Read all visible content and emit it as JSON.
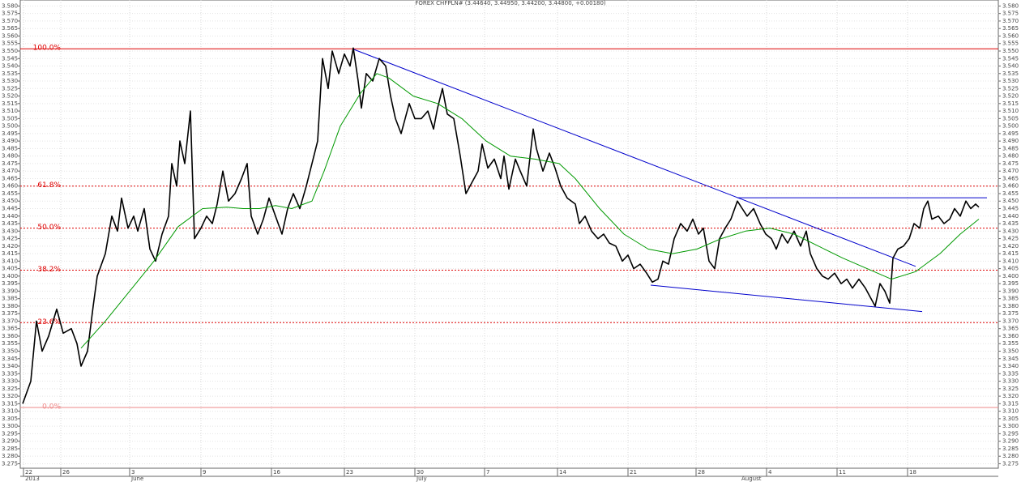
{
  "chart_data": {
    "type": "line",
    "title": "FOREX CHFPLN# (3.44640, 3.44950, 3.44200, 3.44800, +0.00180)",
    "xlim": [
      0,
      120.7
    ],
    "ylim": [
      3.272,
      3.584
    ],
    "grid": true,
    "xticks": [
      {
        "value": 0.4,
        "label": "22"
      },
      {
        "value": 5,
        "label": "26"
      },
      {
        "value": 13.5,
        "label": "3"
      },
      {
        "value": 22.3,
        "label": "9"
      },
      {
        "value": 31,
        "label": "16"
      },
      {
        "value": 40,
        "label": "23"
      },
      {
        "value": 48.7,
        "label": "30"
      },
      {
        "value": 57.3,
        "label": "7"
      },
      {
        "value": 66.3,
        "label": "14"
      },
      {
        "value": 75,
        "label": "21"
      },
      {
        "value": 83.4,
        "label": "28"
      },
      {
        "value": 92.1,
        "label": "4"
      },
      {
        "value": 100.8,
        "label": "11"
      },
      {
        "value": 109.5,
        "label": "18"
      }
    ],
    "month_labels": [
      {
        "value": 0.4,
        "label": "2013"
      },
      {
        "value": 13.5,
        "label": "June"
      },
      {
        "value": 48.7,
        "label": "July"
      },
      {
        "value": 88.8,
        "label": "August"
      }
    ],
    "yticks": [
      {
        "value": 3.58,
        "label": "3.580"
      },
      {
        "value": 3.575,
        "label": "3.575"
      },
      {
        "value": 3.57,
        "label": "3.570"
      },
      {
        "value": 3.565,
        "label": "3.565"
      },
      {
        "value": 3.56,
        "label": "3.560"
      },
      {
        "value": 3.555,
        "label": "3.555"
      },
      {
        "value": 3.55,
        "label": "3.550"
      },
      {
        "value": 3.545,
        "label": "3.545"
      },
      {
        "value": 3.54,
        "label": "3.540"
      },
      {
        "value": 3.535,
        "label": "3.535"
      },
      {
        "value": 3.53,
        "label": "3.530"
      },
      {
        "value": 3.525,
        "label": "3.525"
      },
      {
        "value": 3.52,
        "label": "3.520"
      },
      {
        "value": 3.515,
        "label": "3.515"
      },
      {
        "value": 3.51,
        "label": "3.510"
      },
      {
        "value": 3.505,
        "label": "3.505"
      },
      {
        "value": 3.5,
        "label": "3.500"
      },
      {
        "value": 3.495,
        "label": "3.495"
      },
      {
        "value": 3.49,
        "label": "3.490"
      },
      {
        "value": 3.485,
        "label": "3.485"
      },
      {
        "value": 3.48,
        "label": "3.480"
      },
      {
        "value": 3.475,
        "label": "3.475"
      },
      {
        "value": 3.47,
        "label": "3.470"
      },
      {
        "value": 3.465,
        "label": "3.465"
      },
      {
        "value": 3.46,
        "label": "3.460"
      },
      {
        "value": 3.455,
        "label": "3.455"
      },
      {
        "value": 3.45,
        "label": "3.450"
      },
      {
        "value": 3.445,
        "label": "3.445"
      },
      {
        "value": 3.44,
        "label": "3.440"
      },
      {
        "value": 3.435,
        "label": "3.435"
      },
      {
        "value": 3.43,
        "label": "3.430"
      },
      {
        "value": 3.425,
        "label": "3.425"
      },
      {
        "value": 3.42,
        "label": "3.420"
      },
      {
        "value": 3.415,
        "label": "3.415"
      },
      {
        "value": 3.41,
        "label": "3.410"
      },
      {
        "value": 3.405,
        "label": "3.405"
      },
      {
        "value": 3.4,
        "label": "3.400"
      },
      {
        "value": 3.395,
        "label": "3.395"
      },
      {
        "value": 3.39,
        "label": "3.390"
      },
      {
        "value": 3.385,
        "label": "3.385"
      },
      {
        "value": 3.38,
        "label": "3.380"
      },
      {
        "value": 3.375,
        "label": "3.375"
      },
      {
        "value": 3.37,
        "label": "3.370"
      },
      {
        "value": 3.365,
        "label": "3.365"
      },
      {
        "value": 3.36,
        "label": "3.360"
      },
      {
        "value": 3.355,
        "label": "3.355"
      },
      {
        "value": 3.35,
        "label": "3.350"
      },
      {
        "value": 3.345,
        "label": "3.345"
      },
      {
        "value": 3.34,
        "label": "3.340"
      },
      {
        "value": 3.335,
        "label": "3.335"
      },
      {
        "value": 3.33,
        "label": "3.330"
      },
      {
        "value": 3.325,
        "label": "3.325"
      },
      {
        "value": 3.32,
        "label": "3.320"
      },
      {
        "value": 3.315,
        "label": "3.315"
      },
      {
        "value": 3.31,
        "label": "3.310"
      },
      {
        "value": 3.305,
        "label": "3.305"
      },
      {
        "value": 3.3,
        "label": "3.300"
      },
      {
        "value": 3.295,
        "label": "3.295"
      },
      {
        "value": 3.29,
        "label": "3.290"
      },
      {
        "value": 3.285,
        "label": "3.285"
      },
      {
        "value": 3.28,
        "label": "3.280"
      },
      {
        "value": 3.275,
        "label": "3.275"
      }
    ],
    "series": [
      {
        "color": "#000000",
        "x": [
          0.3,
          1.3,
          2,
          2.7,
          3.5,
          4.5,
          5.3,
          6.3,
          7,
          7.5,
          8.3,
          9,
          9.5,
          10.5,
          11.3,
          12,
          12.5,
          13.3,
          14,
          14.5,
          15.3,
          16,
          16.7,
          17.5,
          18.3,
          18.7,
          19.3,
          19.7,
          20.3,
          21,
          21.5,
          22.3,
          23,
          23.7,
          24.3,
          25,
          25.7,
          26.5,
          27.3,
          28,
          28.5,
          29.3,
          30,
          30.7,
          31.5,
          32.3,
          33,
          33.7,
          34.5,
          35.3,
          36,
          36.7,
          37.3,
          38,
          38.5,
          39.3,
          40,
          40.7,
          41.1,
          41.7,
          42.1,
          42.7,
          43.5,
          44.3,
          45.1,
          45.7,
          46.3,
          47,
          48,
          48.7,
          49.5,
          50.3,
          51,
          51.5,
          52.1,
          52.7,
          53.5,
          54.3,
          55,
          55.7,
          56.5,
          57,
          57.7,
          58.5,
          59.3,
          59.7,
          60.3,
          61.1,
          61.7,
          62.5,
          63.3,
          63.7,
          64.5,
          65.3,
          66,
          66.7,
          67.5,
          68.5,
          69,
          69.7,
          70.5,
          71.3,
          72,
          72.7,
          73.5,
          74.3,
          75,
          75.7,
          76.5,
          77.3,
          78,
          78.7,
          79.3,
          80,
          80.7,
          81.5,
          82.3,
          83,
          83.7,
          84.3,
          85,
          85.7,
          86.3,
          87,
          87.7,
          88.5,
          89.1,
          89.7,
          90.5,
          91.3,
          92,
          92.7,
          93.3,
          94,
          94.7,
          95.5,
          96.3,
          97,
          97.5,
          98.3,
          99,
          99.7,
          100.5,
          101.3,
          102,
          102.7,
          103.5,
          104.3,
          105,
          105.5,
          106.1,
          106.7,
          107.3,
          107.7,
          108.3,
          109,
          109.7,
          110.3,
          111,
          111.5,
          112,
          112.5,
          113.3,
          114,
          114.7,
          115.3,
          116,
          116.7,
          117.3,
          117.9,
          118.3
        ],
        "values": [
          3.315,
          3.33,
          3.37,
          3.35,
          3.36,
          3.378,
          3.362,
          3.365,
          3.355,
          3.34,
          3.35,
          3.38,
          3.4,
          3.415,
          3.44,
          3.43,
          3.452,
          3.432,
          3.44,
          3.43,
          3.445,
          3.418,
          3.41,
          3.428,
          3.44,
          3.475,
          3.46,
          3.49,
          3.475,
          3.51,
          3.425,
          3.432,
          3.44,
          3.435,
          3.448,
          3.47,
          3.45,
          3.455,
          3.465,
          3.475,
          3.44,
          3.428,
          3.438,
          3.452,
          3.44,
          3.428,
          3.445,
          3.455,
          3.445,
          3.46,
          3.475,
          3.49,
          3.545,
          3.525,
          3.55,
          3.535,
          3.548,
          3.54,
          3.552,
          3.53,
          3.512,
          3.535,
          3.53,
          3.545,
          3.54,
          3.52,
          3.505,
          3.495,
          3.515,
          3.505,
          3.505,
          3.51,
          3.498,
          3.512,
          3.525,
          3.508,
          3.505,
          3.48,
          3.455,
          3.462,
          3.47,
          3.488,
          3.472,
          3.478,
          3.465,
          3.48,
          3.458,
          3.478,
          3.47,
          3.46,
          3.498,
          3.485,
          3.47,
          3.482,
          3.472,
          3.46,
          3.452,
          3.448,
          3.435,
          3.44,
          3.43,
          3.425,
          3.428,
          3.422,
          3.42,
          3.41,
          3.414,
          3.405,
          3.408,
          3.402,
          3.396,
          3.398,
          3.41,
          3.408,
          3.425,
          3.435,
          3.43,
          3.438,
          3.428,
          3.432,
          3.41,
          3.405,
          3.425,
          3.432,
          3.438,
          3.45,
          3.445,
          3.44,
          3.445,
          3.435,
          3.428,
          3.425,
          3.418,
          3.428,
          3.422,
          3.43,
          3.42,
          3.43,
          3.415,
          3.405,
          3.4,
          3.398,
          3.402,
          3.395,
          3.398,
          3.392,
          3.398,
          3.392,
          3.385,
          3.38,
          3.395,
          3.39,
          3.382,
          3.412,
          3.418,
          3.42,
          3.425,
          3.435,
          3.432,
          3.445,
          3.45,
          3.438,
          3.44,
          3.435,
          3.438,
          3.445,
          3.44,
          3.45,
          3.445,
          3.448,
          3.446
        ]
      },
      {
        "color": "#009900",
        "x": [
          7.5,
          10.5,
          13.5,
          16.5,
          19.5,
          22.5,
          25.5,
          27.5,
          29.5,
          31.5,
          33.5,
          36,
          37.5,
          39.5,
          42,
          44,
          45.5,
          48.5,
          51.5,
          54.5,
          57.5,
          60.5,
          63.5,
          66.5,
          68.5,
          71.5,
          74.5,
          77.5,
          80.5,
          83.5,
          86.5,
          89.5,
          92.5,
          95.5,
          98.5,
          101.5,
          104.5,
          107.5,
          110.5,
          113.5,
          116,
          118.3
        ],
        "values": [
          3.352,
          3.37,
          3.39,
          3.41,
          3.433,
          3.445,
          3.446,
          3.445,
          3.445,
          3.447,
          3.445,
          3.45,
          3.47,
          3.5,
          3.522,
          3.535,
          3.532,
          3.52,
          3.515,
          3.505,
          3.49,
          3.48,
          3.478,
          3.475,
          3.465,
          3.445,
          3.428,
          3.418,
          3.415,
          3.418,
          3.425,
          3.43,
          3.432,
          3.428,
          3.42,
          3.412,
          3.405,
          3.398,
          3.403,
          3.415,
          3.428,
          3.438
        ]
      }
    ],
    "trendlines": [
      {
        "color": "#0000cc",
        "x": [
          41.1,
          110.5
        ],
        "y": [
          3.5512,
          3.4065
        ]
      },
      {
        "color": "#0000cc",
        "x": [
          88.5,
          119.3
        ],
        "y": [
          3.4522,
          3.4522
        ]
      },
      {
        "color": "#0000cc",
        "x": [
          77.8,
          111.3
        ],
        "y": [
          3.394,
          3.3764
        ]
      }
    ],
    "levels": [
      {
        "label": "100.0%",
        "value": 3.5515,
        "style": "solid",
        "color": "#dd0000"
      },
      {
        "label": "61.8%",
        "value": 3.46,
        "style": "dotted",
        "color": "#dd0000"
      },
      {
        "label": "50.0%",
        "value": 3.432,
        "style": "dotted",
        "color": "#dd0000"
      },
      {
        "label": "38.2%",
        "value": 3.404,
        "style": "dotted",
        "color": "#dd0000"
      },
      {
        "label": "23.6%",
        "value": 3.369,
        "style": "dotted",
        "color": "#dd0000"
      },
      {
        "label": "0.0%",
        "value": 3.3125,
        "style": "solid",
        "color": "#ee8888"
      }
    ]
  }
}
